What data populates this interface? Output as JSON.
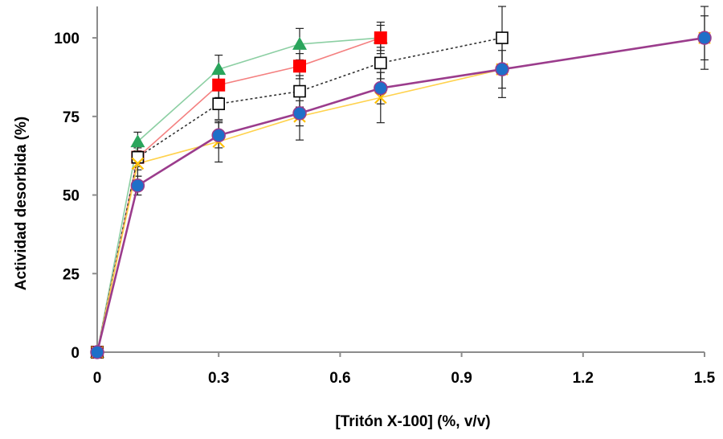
{
  "chart_data": {
    "type": "line",
    "xlabel": "[Tritón X-100] (%,  v/v)",
    "ylabel": "Actividad desorbida (%)",
    "xlim": [
      0,
      1.5
    ],
    "ylim": [
      0,
      110
    ],
    "xticks": [
      0,
      0.3,
      0.6,
      0.9,
      1.2,
      1.5
    ],
    "xtick_labels": [
      "0",
      "0.3",
      "0.6",
      "0.9",
      "1.2",
      "1.5"
    ],
    "yticks": [
      0,
      25,
      50,
      75,
      100
    ],
    "ytick_labels": [
      "0",
      "25",
      "50",
      "75",
      "100"
    ],
    "grid": false,
    "legend": false,
    "series": [
      {
        "marker": "triangle",
        "color": "#2aa55c",
        "line_color": "#8ccfa3",
        "line_style": "solid",
        "filled": true,
        "x": [
          0,
          0.1,
          0.3,
          0.5,
          0.7
        ],
        "y": [
          0,
          67,
          90,
          98,
          100
        ],
        "err": [
          0,
          3,
          4.5,
          5,
          5
        ]
      },
      {
        "marker": "square",
        "color": "#ff0000",
        "line_color": "#f48080",
        "line_style": "solid",
        "filled": true,
        "x": [
          0,
          0.1,
          0.3,
          0.5,
          0.7
        ],
        "y": [
          0,
          62,
          85,
          91,
          100
        ],
        "err": [
          0,
          3,
          4,
          4,
          4
        ]
      },
      {
        "marker": "square",
        "color": "#000000",
        "line_color": "#333333",
        "line_style": "dotted",
        "filled": false,
        "x": [
          0,
          0.1,
          0.3,
          0.5,
          0.7,
          1.0
        ],
        "y": [
          0,
          62,
          79,
          83,
          92,
          100
        ],
        "err": [
          0,
          4,
          5,
          5,
          5,
          10
        ]
      },
      {
        "marker": "x",
        "color": "#ffc000",
        "line_color": "#ffd24d",
        "line_style": "solid",
        "filled": false,
        "x": [
          0,
          0.1,
          0.3,
          0.5,
          0.7,
          1.0,
          1.5
        ],
        "y": [
          0,
          60,
          67,
          75,
          81,
          90,
          100
        ],
        "err": [
          0,
          4,
          6.5,
          7.5,
          8,
          9,
          10
        ]
      },
      {
        "marker": "circle",
        "color": "#1f6fc8",
        "line_color": "#9b3c8c",
        "line_style": "solid",
        "filled": true,
        "x": [
          0,
          0.1,
          0.3,
          0.5,
          0.7,
          1.0,
          1.5
        ],
        "y": [
          0,
          53,
          69,
          76,
          84,
          90,
          100
        ],
        "err": [
          0,
          3,
          4,
          4,
          5,
          6,
          7
        ]
      }
    ]
  }
}
